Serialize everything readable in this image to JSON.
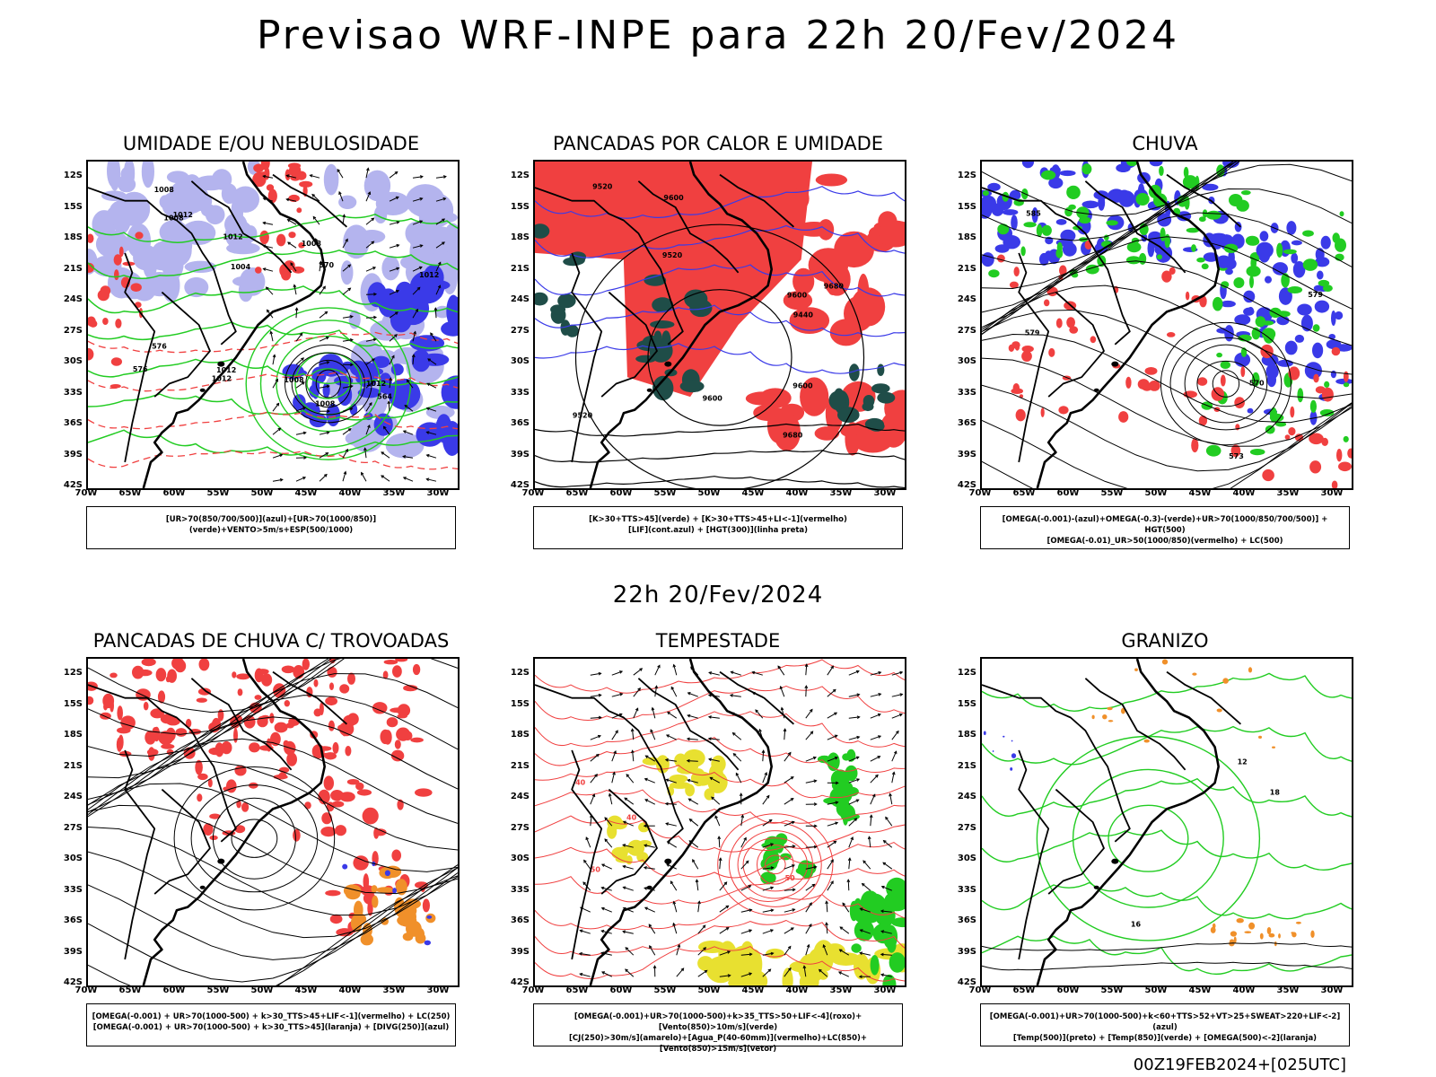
{
  "title": "Previsao WRF-INPE  para 22h 20/Fev/2024",
  "middle_title": "22h 20/Fev/2024",
  "footer": "00Z19FEB2024+[025UTC]",
  "axes": {
    "lat_labels": [
      "12S",
      "15S",
      "18S",
      "21S",
      "24S",
      "27S",
      "30S",
      "33S",
      "36S",
      "39S",
      "42S"
    ],
    "lon_labels": [
      "70W",
      "65W",
      "60W",
      "55W",
      "50W",
      "45W",
      "40W",
      "35W",
      "30W"
    ]
  },
  "colors": {
    "blue": "#3a3ae8",
    "light_blue": "#b4b4ee",
    "green": "#22cc22",
    "red": "#f04040",
    "orange": "#f0902a",
    "yellow": "#e8e030",
    "dark_teal": "#1f4d48",
    "black": "#000000"
  },
  "panels": [
    {
      "id": "umidade",
      "title": "UMIDADE E/OU NEBULOSIDADE",
      "legend": [
        "[UR>70(850/700/500)](azul)+[UR>70(1000/850)](verde)+VENTO>5m/s+ESP(500/1000)"
      ],
      "labels": [
        "1008",
        "1008",
        "1012",
        "1012",
        "1008",
        "1012",
        "1008",
        "1008",
        "1012",
        "1012",
        "1012",
        "1004",
        "576",
        "576",
        "570",
        "564"
      ]
    },
    {
      "id": "pancadas-calor",
      "title": "PANCADAS POR CALOR E UMIDADE",
      "legend": [
        "[K>30+TTS>45](verde) + [K>30+TTS>45+LI<-1](vermelho)",
        "[LIF](cont.azul) + [HGT(300)](linha preta)"
      ],
      "labels": [
        "9680",
        "9680",
        "9600",
        "9520",
        "9520",
        "9600",
        "9520",
        "9440",
        "9600",
        "9600"
      ]
    },
    {
      "id": "chuva",
      "title": "CHUVA",
      "legend": [
        "[OMEGA(-0.001)-(azul)+OMEGA(-0.3)-(verde)+UR>70(1000/850/700/500)] + HGT(500)",
        "[OMEGA(-0.01)_UR>50(1000/850)(vermelho) + LC(500)"
      ],
      "labels": [
        "585",
        "579",
        "579",
        "573",
        "570"
      ]
    },
    {
      "id": "trovoadas",
      "title": "PANCADAS DE CHUVA C/ TROVOADAS",
      "legend": [
        "[OMEGA(-0.001) + UR>70(1000-500) + k>30_TTS>45+LIF<-1](vermelho) + LC(250)",
        "[OMEGA(-0.001) + UR>70(1000-500) + k>30_TTS>45](laranja) + [DIVG(250)](azul)"
      ],
      "labels": []
    },
    {
      "id": "tempestade",
      "title": "TEMPESTADE",
      "legend": [
        "[OMEGA(-0.001)+UR>70(1000-500)+k>35_TTS>50+LIF<-4](roxo)+[Vento(850)>10m/s](verde)",
        "[CJ(250)>30m/s](amarelo)+[Agua_P(40-60mm)](vermelho)+LC(850)+[Vento(850)>15m/s](vetor)"
      ],
      "labels": [
        "50",
        "50",
        "40",
        "40"
      ]
    },
    {
      "id": "granizo",
      "title": "GRANIZO",
      "legend": [
        "[OMEGA(-0.001)+UR>70(1000-500)+k<60+TTS>52+VT>25+SWEAT>220+LIF<-2](azul)",
        "[Temp(500)](preto) + [Temp(850)](verde) + [OMEGA(500)<-2](laranja)"
      ],
      "labels": [
        "12",
        "16",
        "18"
      ]
    }
  ]
}
